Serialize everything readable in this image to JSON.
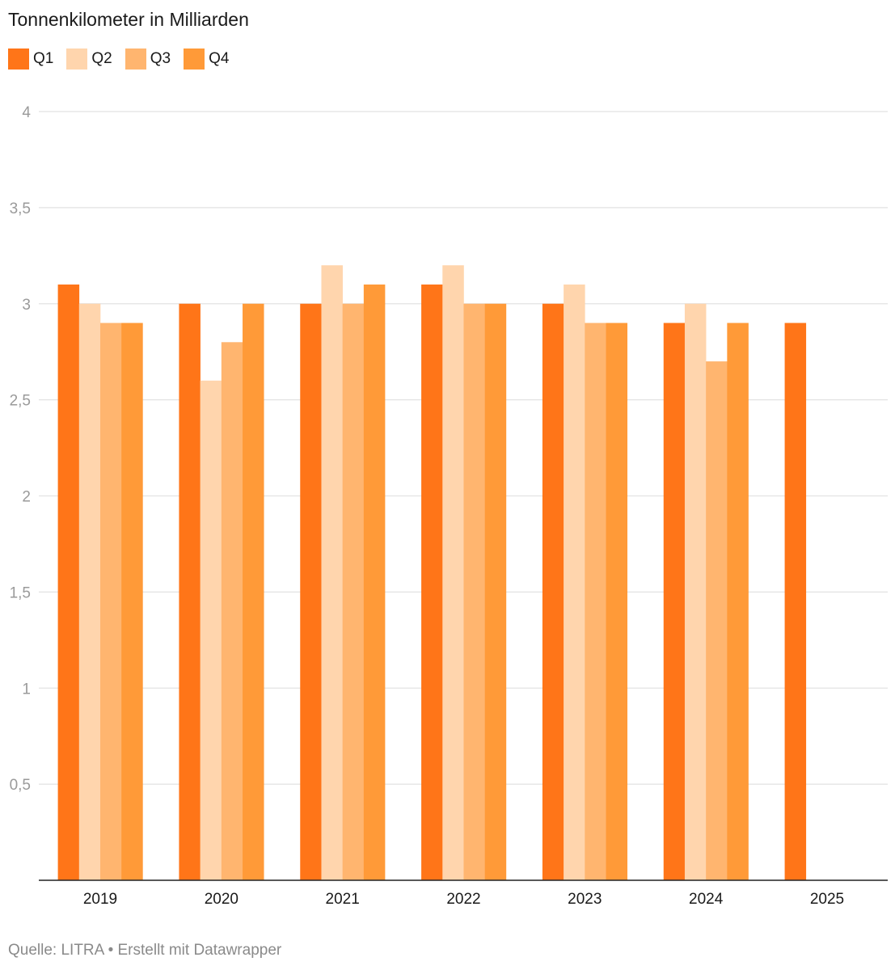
{
  "chart_data": {
    "type": "bar",
    "title": "Tonnenkilometer in Milliarden",
    "xlabel": "",
    "ylabel": "",
    "categories": [
      "2019",
      "2020",
      "2021",
      "2022",
      "2023",
      "2024",
      "2025"
    ],
    "series": [
      {
        "name": "Q1",
        "color": "#ff7518",
        "values": [
          3.1,
          3.0,
          3.0,
          3.1,
          3.0,
          2.9,
          2.9
        ]
      },
      {
        "name": "Q2",
        "color": "#ffd5ad",
        "values": [
          3.0,
          2.6,
          3.2,
          3.2,
          3.1,
          3.0,
          null
        ]
      },
      {
        "name": "Q3",
        "color": "#ffb56f",
        "values": [
          2.9,
          2.8,
          3.0,
          3.0,
          2.9,
          2.7,
          null
        ]
      },
      {
        "name": "Q4",
        "color": "#ff9a38",
        "values": [
          2.9,
          3.0,
          3.1,
          3.0,
          2.9,
          2.9,
          null
        ]
      }
    ],
    "ylim": [
      0,
      4
    ],
    "yticks": [
      0.5,
      1,
      1.5,
      2,
      2.5,
      3,
      3.5,
      4
    ],
    "ytick_labels": [
      "0,5",
      "1",
      "1,5",
      "2",
      "2,5",
      "3",
      "3,5",
      "4"
    ],
    "grid": true,
    "legend_position": "top-left"
  },
  "footer": {
    "source_label": "Quelle: LITRA",
    "separator": "•",
    "credit_text": "Erstellt mit Datawrapper"
  }
}
